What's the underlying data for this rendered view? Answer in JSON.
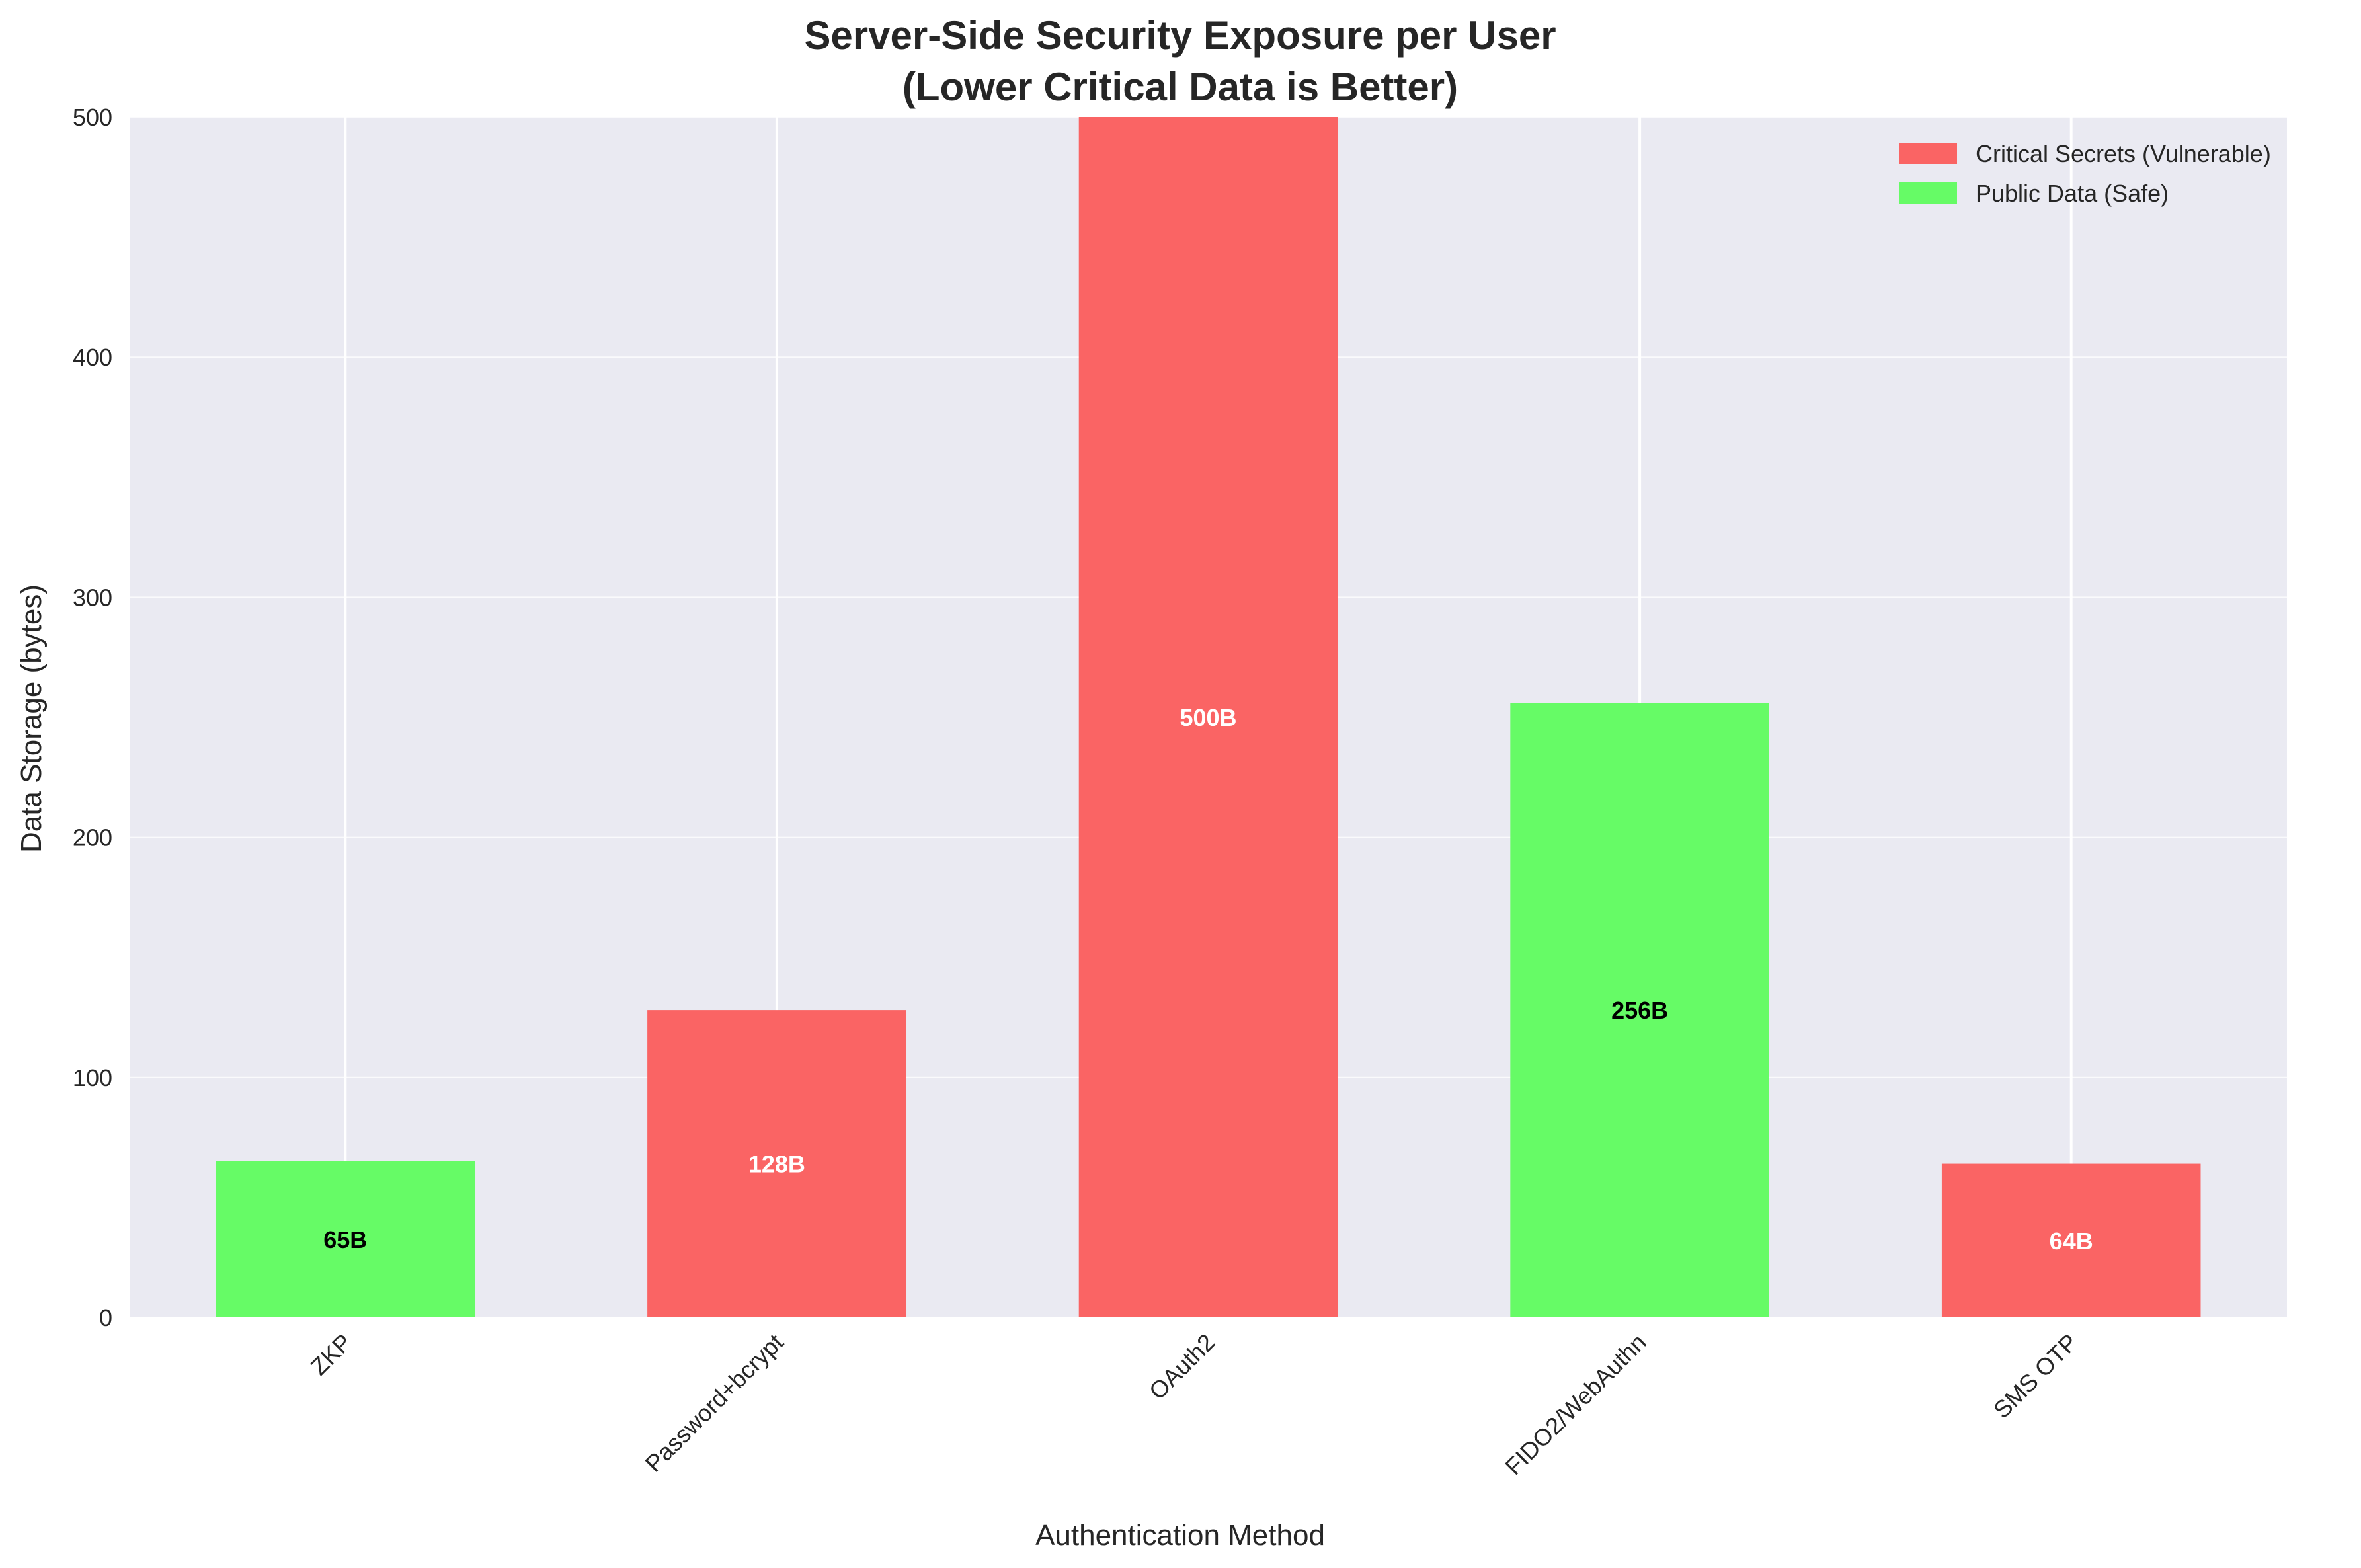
{
  "chart_data": {
    "type": "bar",
    "title": "Server-Side Security Exposure per User",
    "subtitle": "(Lower Critical Data is Better)",
    "xlabel": "Authentication Method",
    "ylabel": "Data Storage (bytes)",
    "ylim": [
      0,
      500
    ],
    "yticks": [
      0,
      100,
      200,
      300,
      400,
      500
    ],
    "grid": true,
    "legend_position": "top-right",
    "categories": [
      "ZKP",
      "Password+bcrypt",
      "OAuth2",
      "FIDO2/WebAuthn",
      "SMS OTP"
    ],
    "values": [
      65,
      128,
      500,
      256,
      64
    ],
    "bar_labels": [
      "65B",
      "128B",
      "500B",
      "256B",
      "64B"
    ],
    "bar_types": [
      "public",
      "critical",
      "critical",
      "public",
      "critical"
    ],
    "legend": [
      {
        "key": "critical",
        "label": "Critical Secrets (Vulnerable)",
        "color": "#fa6464"
      },
      {
        "key": "public",
        "label": "Public Data (Safe)",
        "color": "#66fb66"
      }
    ],
    "label_colors": {
      "critical": "#ffffff",
      "public": "#000000"
    },
    "background_color": "#eaeaf2",
    "grid_color": "#ffffff"
  }
}
